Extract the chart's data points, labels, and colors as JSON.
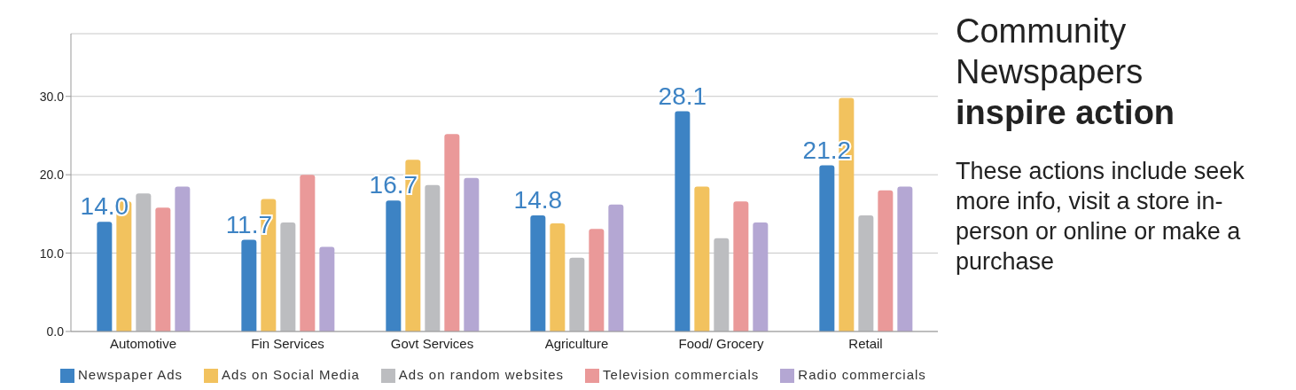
{
  "chart_data": {
    "type": "bar",
    "title": "Community Newspapers inspire action",
    "subtitle": "These actions include seek more info, visit a store in-person or online or make a purchase",
    "categories": [
      "Automotive",
      "Fin Services",
      "Govt Services",
      "Agriculture",
      "Food/ Grocery",
      "Retail"
    ],
    "series": [
      {
        "name": "Newspaper Ads",
        "color": "#3d83c4",
        "values": [
          14.0,
          11.7,
          16.7,
          14.8,
          28.1,
          21.2
        ],
        "value_labels": [
          "14.0",
          "11.7",
          "16.7",
          "14.8",
          "28.1",
          "21.2"
        ]
      },
      {
        "name": "Ads on Social Media",
        "color": "#f2c25e",
        "values": [
          16.6,
          16.9,
          21.9,
          13.8,
          18.5,
          29.8
        ]
      },
      {
        "name": "Ads on random websites",
        "color": "#bcbdc0",
        "values": [
          17.6,
          13.9,
          18.7,
          9.4,
          11.9,
          14.8
        ]
      },
      {
        "name": "Television commercials",
        "color": "#ea9999",
        "values": [
          15.8,
          20.0,
          25.2,
          13.1,
          16.6,
          18.0
        ]
      },
      {
        "name": "Radio commercials",
        "color": "#b4a7d3",
        "values": [
          18.5,
          10.8,
          19.6,
          16.2,
          13.9,
          18.5
        ]
      }
    ],
    "ylim": [
      0,
      38
    ],
    "yticks": [
      {
        "value": 0,
        "label": "0.0"
      },
      {
        "value": 10,
        "label": "10.0"
      },
      {
        "value": 20,
        "label": "20.0"
      },
      {
        "value": 30,
        "label": "30.0"
      }
    ],
    "grid": "y",
    "legend": "bottom"
  }
}
